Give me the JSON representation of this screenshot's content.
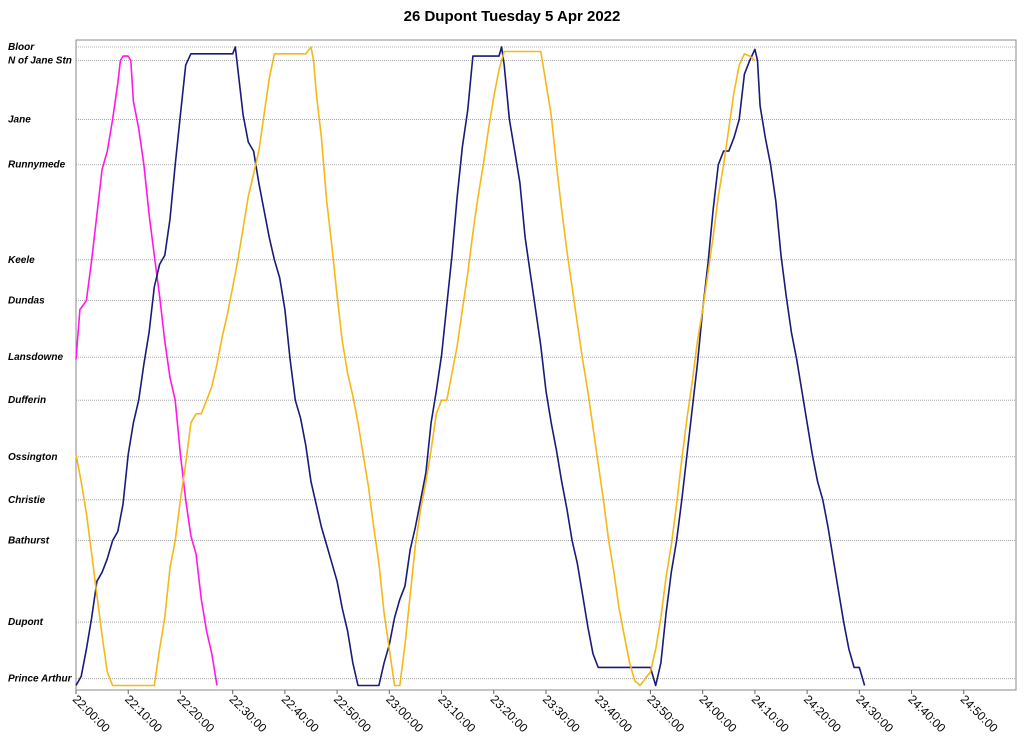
{
  "chart_data": {
    "type": "line",
    "title": "26 Dupont Tuesday 5 Apr 2022",
    "grid": true,
    "xlim": [
      "22:00:00",
      "25:00:00"
    ],
    "x_tick_labels": [
      "22:00:00",
      "22:10:00",
      "22:20:00",
      "22:30:00",
      "22:40:00",
      "22:50:00",
      "23:00:00",
      "23:10:00",
      "23:20:00",
      "23:30:00",
      "23:40:00",
      "23:50:00",
      "24:00:00",
      "24:10:00",
      "24:20:00",
      "24:30:00",
      "24:40:00",
      "24:50:00"
    ],
    "stops": [
      {
        "name": "Bloor",
        "pos": 0
      },
      {
        "name": "N of Jane Stn",
        "pos": 0.3
      },
      {
        "name": "Jane",
        "pos": 1.6
      },
      {
        "name": "Runnymede",
        "pos": 2.6
      },
      {
        "name": "Keele",
        "pos": 4.7
      },
      {
        "name": "Dundas",
        "pos": 5.6
      },
      {
        "name": "Lansdowne",
        "pos": 6.85
      },
      {
        "name": "Dufferin",
        "pos": 7.8
      },
      {
        "name": "Ossington",
        "pos": 9.05
      },
      {
        "name": "Christie",
        "pos": 10.0
      },
      {
        "name": "Bathurst",
        "pos": 10.9
      },
      {
        "name": "Dupont",
        "pos": 12.7
      },
      {
        "name": "Prince Arthur",
        "pos": 13.95
      }
    ],
    "y_range": [
      0,
      14.2
    ],
    "colors": {
      "magenta": "#ff19e6",
      "navy": "#1a1a7a",
      "gold": "#f5b818"
    },
    "series": [
      {
        "color": "#ff19e6",
        "points": [
          [
            "22:00:00",
            6.9
          ],
          [
            "22:00:45",
            5.8
          ],
          [
            "22:02:00",
            5.6
          ],
          [
            "22:03:00",
            4.7
          ],
          [
            "22:05:00",
            2.7
          ],
          [
            "22:06:00",
            2.3
          ],
          [
            "22:07:00",
            1.6
          ],
          [
            "22:08:00",
            0.8
          ],
          [
            "22:08:30",
            0.3
          ],
          [
            "22:09:00",
            0.2
          ],
          [
            "22:10:00",
            0.2
          ],
          [
            "22:10:30",
            0.3
          ],
          [
            "22:11:00",
            1.2
          ],
          [
            "22:12:00",
            1.8
          ],
          [
            "22:13:00",
            2.6
          ],
          [
            "22:14:00",
            3.7
          ],
          [
            "22:15:00",
            4.6
          ],
          [
            "22:16:00",
            5.5
          ],
          [
            "22:17:00",
            6.5
          ],
          [
            "22:18:00",
            7.3
          ],
          [
            "22:19:00",
            7.8
          ],
          [
            "22:20:00",
            9.0
          ],
          [
            "22:21:00",
            10.0
          ],
          [
            "22:22:00",
            10.8
          ],
          [
            "22:23:00",
            11.2
          ],
          [
            "22:24:00",
            12.2
          ],
          [
            "22:25:00",
            12.9
          ],
          [
            "22:26:00",
            13.4
          ],
          [
            "22:27:00",
            14.1
          ]
        ]
      },
      {
        "color": "#1a1a7a",
        "points": [
          [
            "22:00:00",
            14.1
          ],
          [
            "22:01:00",
            13.9
          ],
          [
            "22:02:00",
            13.3
          ],
          [
            "22:03:00",
            12.6
          ],
          [
            "22:04:00",
            11.8
          ],
          [
            "22:05:00",
            11.6
          ],
          [
            "22:06:00",
            11.3
          ],
          [
            "22:07:00",
            10.9
          ],
          [
            "22:08:00",
            10.7
          ],
          [
            "22:09:00",
            10.1
          ],
          [
            "22:10:00",
            9.0
          ],
          [
            "22:11:00",
            8.3
          ],
          [
            "22:12:00",
            7.8
          ],
          [
            "22:13:00",
            7.0
          ],
          [
            "22:14:00",
            6.3
          ],
          [
            "22:15:00",
            5.3
          ],
          [
            "22:16:00",
            4.8
          ],
          [
            "22:17:00",
            4.6
          ],
          [
            "22:18:00",
            3.8
          ],
          [
            "22:19:00",
            2.6
          ],
          [
            "22:20:00",
            1.5
          ],
          [
            "22:21:00",
            0.4
          ],
          [
            "22:22:00",
            0.15
          ],
          [
            "22:30:00",
            0.15
          ],
          [
            "22:30:30",
            0.0
          ],
          [
            "22:31:00",
            0.5
          ],
          [
            "22:32:00",
            1.5
          ],
          [
            "22:33:00",
            2.1
          ],
          [
            "22:34:00",
            2.3
          ],
          [
            "22:35:00",
            3.0
          ],
          [
            "22:36:00",
            3.6
          ],
          [
            "22:37:00",
            4.2
          ],
          [
            "22:38:00",
            4.7
          ],
          [
            "22:39:00",
            5.1
          ],
          [
            "22:40:00",
            5.8
          ],
          [
            "22:41:00",
            6.9
          ],
          [
            "22:42:00",
            7.8
          ],
          [
            "22:43:00",
            8.2
          ],
          [
            "22:44:00",
            8.8
          ],
          [
            "22:45:00",
            9.6
          ],
          [
            "22:46:00",
            10.1
          ],
          [
            "22:47:00",
            10.6
          ],
          [
            "22:48:00",
            11.0
          ],
          [
            "22:49:00",
            11.4
          ],
          [
            "22:50:00",
            11.8
          ],
          [
            "22:51:00",
            12.4
          ],
          [
            "22:52:00",
            12.9
          ],
          [
            "22:53:00",
            13.6
          ],
          [
            "22:54:00",
            14.1
          ],
          [
            "22:58:00",
            14.1
          ],
          [
            "22:59:00",
            13.6
          ],
          [
            "23:00:00",
            13.2
          ],
          [
            "23:01:00",
            12.6
          ],
          [
            "23:02:00",
            12.2
          ],
          [
            "23:03:00",
            11.9
          ],
          [
            "23:04:00",
            11.1
          ],
          [
            "23:05:00",
            10.6
          ],
          [
            "23:06:00",
            10.0
          ],
          [
            "23:07:00",
            9.4
          ],
          [
            "23:08:00",
            8.3
          ],
          [
            "23:09:00",
            7.6
          ],
          [
            "23:10:00",
            6.8
          ],
          [
            "23:11:00",
            5.7
          ],
          [
            "23:12:00",
            4.6
          ],
          [
            "23:13:00",
            3.3
          ],
          [
            "23:14:00",
            2.2
          ],
          [
            "23:15:00",
            1.4
          ],
          [
            "23:16:00",
            0.2
          ],
          [
            "23:21:00",
            0.2
          ],
          [
            "23:21:30",
            0.0
          ],
          [
            "23:22:00",
            0.4
          ],
          [
            "23:23:00",
            1.6
          ],
          [
            "23:24:00",
            2.3
          ],
          [
            "23:25:00",
            3.0
          ],
          [
            "23:26:00",
            4.2
          ],
          [
            "23:27:00",
            5.0
          ],
          [
            "23:28:00",
            5.8
          ],
          [
            "23:29:00",
            6.6
          ],
          [
            "23:30:00",
            7.6
          ],
          [
            "23:31:00",
            8.3
          ],
          [
            "23:32:00",
            8.9
          ],
          [
            "23:33:00",
            9.6
          ],
          [
            "23:34:00",
            10.2
          ],
          [
            "23:35:00",
            10.9
          ],
          [
            "23:36:00",
            11.4
          ],
          [
            "23:37:00",
            12.1
          ],
          [
            "23:38:00",
            12.8
          ],
          [
            "23:39:00",
            13.4
          ],
          [
            "23:40:00",
            13.7
          ],
          [
            "23:50:00",
            13.7
          ],
          [
            "23:51:00",
            14.1
          ],
          [
            "23:52:00",
            13.6
          ],
          [
            "23:53:00",
            12.5
          ],
          [
            "23:54:00",
            11.6
          ],
          [
            "23:55:00",
            10.9
          ],
          [
            "23:56:00",
            10.0
          ],
          [
            "23:57:00",
            9.0
          ],
          [
            "23:58:00",
            8.0
          ],
          [
            "23:59:00",
            7.0
          ],
          [
            "24:00:00",
            5.8
          ],
          [
            "24:01:00",
            4.8
          ],
          [
            "24:02:00",
            3.6
          ],
          [
            "24:03:00",
            2.6
          ],
          [
            "24:04:00",
            2.3
          ],
          [
            "24:05:00",
            2.3
          ],
          [
            "24:06:00",
            2.0
          ],
          [
            "24:07:00",
            1.6
          ],
          [
            "24:08:00",
            0.6
          ],
          [
            "24:09:00",
            0.3
          ],
          [
            "24:10:00",
            0.05
          ],
          [
            "24:10:30",
            0.3
          ],
          [
            "24:11:00",
            1.3
          ],
          [
            "24:12:00",
            2.0
          ],
          [
            "24:13:00",
            2.6
          ],
          [
            "24:14:00",
            3.4
          ],
          [
            "24:15:00",
            4.6
          ],
          [
            "24:16:00",
            5.5
          ],
          [
            "24:17:00",
            6.3
          ],
          [
            "24:18:00",
            6.9
          ],
          [
            "24:19:00",
            7.6
          ],
          [
            "24:20:00",
            8.3
          ],
          [
            "24:21:00",
            9.0
          ],
          [
            "24:22:00",
            9.6
          ],
          [
            "24:23:00",
            10.0
          ],
          [
            "24:24:00",
            10.6
          ],
          [
            "24:25:00",
            11.3
          ],
          [
            "24:26:00",
            12.0
          ],
          [
            "24:27:00",
            12.7
          ],
          [
            "24:28:00",
            13.3
          ],
          [
            "24:29:00",
            13.7
          ],
          [
            "24:30:00",
            13.7
          ],
          [
            "24:31:00",
            14.1
          ]
        ]
      },
      {
        "color": "#f5b818",
        "points": [
          [
            "22:00:00",
            9.0
          ],
          [
            "22:01:00",
            9.6
          ],
          [
            "22:02:00",
            10.3
          ],
          [
            "22:03:00",
            11.2
          ],
          [
            "22:04:00",
            12.1
          ],
          [
            "22:05:00",
            13.0
          ],
          [
            "22:06:00",
            13.8
          ],
          [
            "22:07:00",
            14.1
          ],
          [
            "22:15:00",
            14.1
          ],
          [
            "22:16:00",
            13.3
          ],
          [
            "22:17:00",
            12.6
          ],
          [
            "22:18:00",
            11.5
          ],
          [
            "22:19:00",
            10.9
          ],
          [
            "22:20:00",
            10.0
          ],
          [
            "22:21:00",
            9.2
          ],
          [
            "22:22:00",
            8.3
          ],
          [
            "22:23:00",
            8.1
          ],
          [
            "22:24:00",
            8.1
          ],
          [
            "22:25:00",
            7.8
          ],
          [
            "22:26:00",
            7.5
          ],
          [
            "22:27:00",
            7.0
          ],
          [
            "22:28:00",
            6.4
          ],
          [
            "22:29:00",
            5.9
          ],
          [
            "22:30:00",
            5.3
          ],
          [
            "22:31:00",
            4.7
          ],
          [
            "22:32:00",
            4.0
          ],
          [
            "22:33:00",
            3.3
          ],
          [
            "22:34:00",
            2.8
          ],
          [
            "22:35:00",
            2.3
          ],
          [
            "22:36:00",
            1.5
          ],
          [
            "22:37:00",
            0.7
          ],
          [
            "22:38:00",
            0.15
          ],
          [
            "22:44:00",
            0.15
          ],
          [
            "22:45:00",
            0.0
          ],
          [
            "22:45:30",
            0.3
          ],
          [
            "22:46:00",
            1.0
          ],
          [
            "22:47:00",
            2.0
          ],
          [
            "22:48:00",
            3.4
          ],
          [
            "22:49:00",
            4.4
          ],
          [
            "22:50:00",
            5.5
          ],
          [
            "22:51:00",
            6.5
          ],
          [
            "22:52:00",
            7.2
          ],
          [
            "22:53:00",
            7.7
          ],
          [
            "22:54:00",
            8.3
          ],
          [
            "22:55:00",
            9.0
          ],
          [
            "22:56:00",
            9.7
          ],
          [
            "22:57:00",
            10.6
          ],
          [
            "22:58:00",
            11.4
          ],
          [
            "22:59:00",
            12.5
          ],
          [
            "23:00:00",
            13.3
          ],
          [
            "23:01:00",
            14.1
          ],
          [
            "23:02:00",
            14.1
          ],
          [
            "23:03:00",
            13.2
          ],
          [
            "23:04:00",
            12.1
          ],
          [
            "23:05:00",
            11.0
          ],
          [
            "23:06:00",
            10.2
          ],
          [
            "23:07:00",
            9.6
          ],
          [
            "23:08:00",
            8.9
          ],
          [
            "23:09:00",
            8.1
          ],
          [
            "23:10:00",
            7.8
          ],
          [
            "23:11:00",
            7.8
          ],
          [
            "23:12:00",
            7.2
          ],
          [
            "23:13:00",
            6.6
          ],
          [
            "23:14:00",
            5.8
          ],
          [
            "23:15:00",
            5.0
          ],
          [
            "23:16:00",
            4.1
          ],
          [
            "23:17:00",
            3.3
          ],
          [
            "23:18:00",
            2.6
          ],
          [
            "23:19:00",
            1.8
          ],
          [
            "23:20:00",
            1.1
          ],
          [
            "23:21:00",
            0.5
          ],
          [
            "23:22:00",
            0.1
          ],
          [
            "23:29:00",
            0.1
          ],
          [
            "23:30:00",
            0.8
          ],
          [
            "23:31:00",
            1.5
          ],
          [
            "23:32:00",
            2.6
          ],
          [
            "23:33:00",
            3.6
          ],
          [
            "23:34:00",
            4.5
          ],
          [
            "23:35:00",
            5.3
          ],
          [
            "23:36:00",
            6.1
          ],
          [
            "23:37:00",
            6.9
          ],
          [
            "23:38:00",
            7.6
          ],
          [
            "23:39:00",
            8.4
          ],
          [
            "23:40:00",
            9.2
          ],
          [
            "23:41:00",
            10.0
          ],
          [
            "23:42:00",
            10.9
          ],
          [
            "23:43:00",
            11.6
          ],
          [
            "23:44:00",
            12.4
          ],
          [
            "23:45:00",
            13.0
          ],
          [
            "23:46:00",
            13.6
          ],
          [
            "23:47:00",
            14.0
          ],
          [
            "23:48:00",
            14.1
          ],
          [
            "23:50:00",
            13.8
          ],
          [
            "23:51:00",
            13.3
          ],
          [
            "23:52:00",
            12.6
          ],
          [
            "23:53:00",
            11.7
          ],
          [
            "23:54:00",
            11.0
          ],
          [
            "23:55:00",
            10.1
          ],
          [
            "23:56:00",
            9.1
          ],
          [
            "23:57:00",
            8.2
          ],
          [
            "23:58:00",
            7.4
          ],
          [
            "23:59:00",
            6.5
          ],
          [
            "24:00:00",
            5.8
          ],
          [
            "24:01:00",
            5.0
          ],
          [
            "24:02:00",
            4.2
          ],
          [
            "24:03:00",
            3.3
          ],
          [
            "24:04:00",
            2.6
          ],
          [
            "24:05:00",
            1.8
          ],
          [
            "24:06:00",
            1.0
          ],
          [
            "24:07:00",
            0.4
          ],
          [
            "24:08:00",
            0.15
          ],
          [
            "24:09:00",
            0.2
          ],
          [
            "24:10:00",
            0.3
          ]
        ]
      }
    ]
  }
}
